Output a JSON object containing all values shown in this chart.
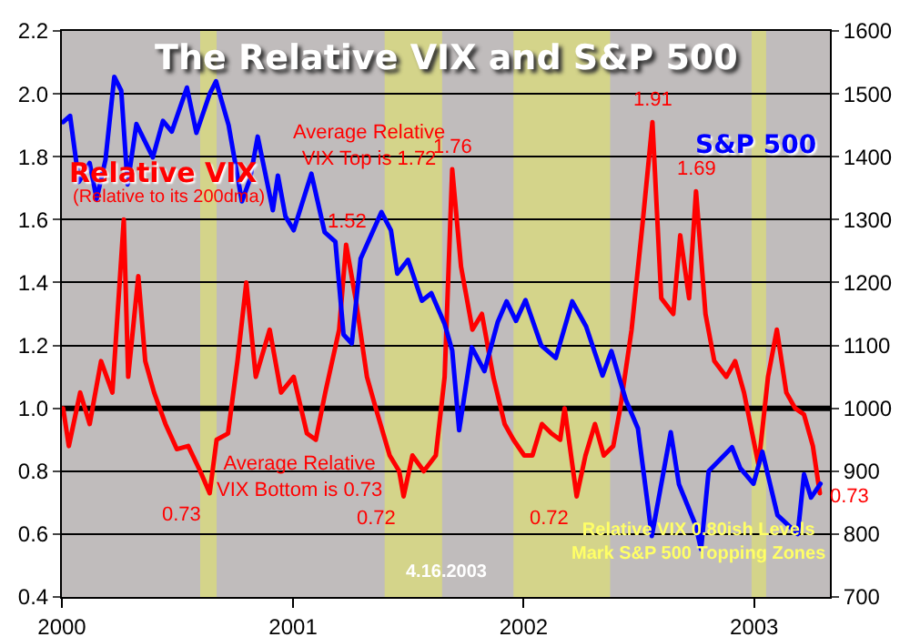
{
  "chart_data": {
    "type": "line",
    "title": "The Relative VIX and S&P 500",
    "legend": false,
    "grid": "y",
    "marker": "none",
    "line_style": "solid",
    "xlim": [
      "2000-01-01",
      "2003-05-01"
    ],
    "xticks": [
      {
        "value": "2000-01-01",
        "label": "2000"
      },
      {
        "value": "2001-01-01",
        "label": "2001"
      },
      {
        "value": "2002-01-01",
        "label": "2002"
      },
      {
        "value": "2003-01-01",
        "label": "2003"
      }
    ],
    "ylim": [
      0.4,
      2.2
    ],
    "yticks": [
      0.4,
      0.6,
      0.8,
      {
        "value": 1,
        "label": "1.0"
      },
      1.2,
      1.4,
      1.6,
      1.8,
      {
        "value": 2,
        "label": "2.0"
      },
      2.2
    ],
    "y2lim": [
      700,
      1600
    ],
    "y2ticks": [
      700,
      800,
      900,
      1000,
      1100,
      1200,
      1300,
      1400,
      1500,
      1600
    ],
    "ref_lines": [
      {
        "axis": "y",
        "value": 1,
        "color": "#000000"
      }
    ],
    "bands": [
      {
        "axis": "x",
        "from": "2000-08-07",
        "to": "2000-09-02",
        "color": "#d4d48a"
      },
      {
        "axis": "x",
        "from": "2001-05-26",
        "to": "2001-08-25",
        "color": "#d4d48a"
      },
      {
        "axis": "x",
        "from": "2001-12-16",
        "to": "2002-05-18",
        "color": "#d4d48a"
      },
      {
        "axis": "x",
        "from": "2002-12-28",
        "to": "2003-01-20",
        "color": "#d4d48a"
      }
    ],
    "series": [
      {
        "name": "S&P 500",
        "color": "#0000ff",
        "axis": "y2",
        "x": [
          "2000-01-03",
          "2000-01-14",
          "2000-01-28",
          "2000-02-14",
          "2000-02-25",
          "2000-03-10",
          "2000-03-24",
          "2000-04-04",
          "2000-04-14",
          "2000-04-28",
          "2000-05-24",
          "2000-06-09",
          "2000-06-23",
          "2000-07-17",
          "2000-08-01",
          "2000-08-22",
          "2000-09-01",
          "2000-09-21",
          "2000-10-12",
          "2000-10-25",
          "2000-11-06",
          "2000-11-30",
          "2000-12-08",
          "2000-12-20",
          "2001-01-02",
          "2001-01-30",
          "2001-02-20",
          "2001-03-09",
          "2001-03-22",
          "2001-04-04",
          "2001-04-18",
          "2001-05-21",
          "2001-06-05",
          "2001-06-15",
          "2001-07-02",
          "2001-07-24",
          "2001-08-08",
          "2001-08-29",
          "2001-09-10",
          "2001-09-21",
          "2001-10-11",
          "2001-10-31",
          "2001-11-21",
          "2001-12-05",
          "2001-12-20",
          "2002-01-04",
          "2002-01-29",
          "2002-02-21",
          "2002-03-19",
          "2002-04-10",
          "2002-05-06",
          "2002-05-20",
          "2002-06-12",
          "2002-07-01",
          "2002-07-23",
          "2002-08-22",
          "2002-09-04",
          "2002-09-30",
          "2002-10-09",
          "2002-10-21",
          "2002-11-27",
          "2002-12-10",
          "2002-12-31",
          "2003-01-14",
          "2003-02-07",
          "2003-03-11",
          "2003-03-21",
          "2003-04-01",
          "2003-04-16"
        ],
        "values": [
          1455,
          1465,
          1360,
          1390,
          1333,
          1395,
          1527,
          1505,
          1356,
          1452,
          1399,
          1457,
          1440,
          1510,
          1438,
          1500,
          1520,
          1450,
          1329,
          1365,
          1432,
          1315,
          1370,
          1305,
          1283,
          1373,
          1280,
          1265,
          1117,
          1103,
          1238,
          1312,
          1283,
          1214,
          1236,
          1171,
          1183,
          1134,
          1092,
          965,
          1097,
          1059,
          1137,
          1170,
          1139,
          1172,
          1100,
          1080,
          1170,
          1130,
          1052,
          1091,
          1013,
          968,
          797,
          962,
          879,
          815,
          776,
          900,
          938,
          905,
          880,
          931,
          830,
          800,
          895,
          858,
          880
        ]
      },
      {
        "name": "Relative VIX",
        "color": "#ff0000",
        "x": [
          "2000-01-03",
          "2000-01-12",
          "2000-01-30",
          "2000-02-14",
          "2000-03-03",
          "2000-03-21",
          "2000-04-08",
          "2000-04-15",
          "2000-05-01",
          "2000-05-12",
          "2000-05-26",
          "2000-06-13",
          "2000-07-01",
          "2000-07-19",
          "2000-08-07",
          "2000-08-22",
          "2000-09-02",
          "2000-09-20",
          "2000-10-05",
          "2000-10-19",
          "2000-11-03",
          "2000-11-25",
          "2000-12-13",
          "2001-01-02",
          "2001-01-23",
          "2001-02-06",
          "2001-02-21",
          "2001-03-15",
          "2001-03-26",
          "2001-04-10",
          "2001-04-28",
          "2001-05-12",
          "2001-06-03",
          "2001-06-18",
          "2001-06-25",
          "2001-07-09",
          "2001-07-27",
          "2001-08-15",
          "2001-08-29",
          "2001-09-10",
          "2001-09-24",
          "2001-10-12",
          "2001-10-27",
          "2001-11-14",
          "2001-12-02",
          "2001-12-16",
          "2002-01-02",
          "2002-01-15",
          "2002-01-30",
          "2002-02-14",
          "2002-02-28",
          "2002-03-07",
          "2002-03-26",
          "2002-04-09",
          "2002-04-24",
          "2002-05-08",
          "2002-05-23",
          "2002-06-03",
          "2002-06-21",
          "2002-07-09",
          "2002-07-24",
          "2002-08-07",
          "2002-08-26",
          "2002-09-06",
          "2002-09-20",
          "2002-10-01",
          "2002-10-16",
          "2002-10-30",
          "2002-11-18",
          "2002-12-02",
          "2002-12-16",
          "2003-01-02",
          "2003-01-08",
          "2003-01-23",
          "2003-02-06",
          "2003-02-21",
          "2003-03-07",
          "2003-03-21",
          "2003-04-04",
          "2003-04-15"
        ],
        "values": [
          1.0,
          0.88,
          1.05,
          0.95,
          1.15,
          1.05,
          1.6,
          1.1,
          1.42,
          1.15,
          1.05,
          0.95,
          0.87,
          0.88,
          0.8,
          0.73,
          0.9,
          0.92,
          1.15,
          1.4,
          1.1,
          1.25,
          1.05,
          1.1,
          0.92,
          0.9,
          1.05,
          1.25,
          1.52,
          1.35,
          1.1,
          1.0,
          0.85,
          0.8,
          0.72,
          0.85,
          0.8,
          0.85,
          1.1,
          1.76,
          1.45,
          1.25,
          1.3,
          1.1,
          0.95,
          0.9,
          0.85,
          0.85,
          0.95,
          0.92,
          0.9,
          1.0,
          0.72,
          0.85,
          0.95,
          0.85,
          0.88,
          1.0,
          1.25,
          1.6,
          1.91,
          1.35,
          1.3,
          1.55,
          1.35,
          1.69,
          1.3,
          1.15,
          1.1,
          1.15,
          1.05,
          0.88,
          0.82,
          1.1,
          1.25,
          1.05,
          1.0,
          0.98,
          0.88,
          0.73
        ]
      }
    ],
    "annotations": [
      {
        "text": "0.73",
        "x": "2000-08-22",
        "y": 0.73
      },
      {
        "text": "1.52",
        "x": "2001-03-26",
        "y": 1.52
      },
      {
        "text": "0.72",
        "x": "2001-06-25",
        "y": 0.72
      },
      {
        "text": "1.76",
        "x": "2001-09-10",
        "y": 1.76
      },
      {
        "text": "0.72",
        "x": "2002-03-26",
        "y": 0.72
      },
      {
        "text": "1.91",
        "x": "2002-07-24",
        "y": 1.91
      },
      {
        "text": "1.69",
        "x": "2002-10-01",
        "y": 1.69
      },
      {
        "text": "0.73",
        "x": "2003-04-15",
        "y": 0.73
      },
      "(Relative to its 200dma)",
      "Average Relative VIX Top is 1.72",
      "Average Relative VIX Bottom is 0.73",
      "Relative VIX 0.80ish Levels Mark S&P 500 Topping Zones",
      "4.16.2003"
    ]
  }
}
